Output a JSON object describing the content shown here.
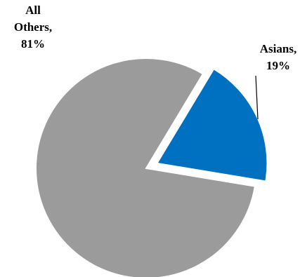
{
  "chart_data": {
    "type": "pie",
    "title": "",
    "series": [
      {
        "categories": [
          "Asians",
          "All Others"
        ],
        "values": [
          19,
          81
        ],
        "colors": [
          "#0070C0",
          "#9B9B9B"
        ],
        "labels": [
          {
            "lines": [
              "Asians,",
              "19%"
            ]
          },
          {
            "lines": [
              "All",
              "Others,",
              "81%"
            ]
          }
        ],
        "exploded": [
          "Asians"
        ]
      }
    ],
    "legend": "none",
    "data_labels": "category and percent, outside with leader line for Asians"
  }
}
